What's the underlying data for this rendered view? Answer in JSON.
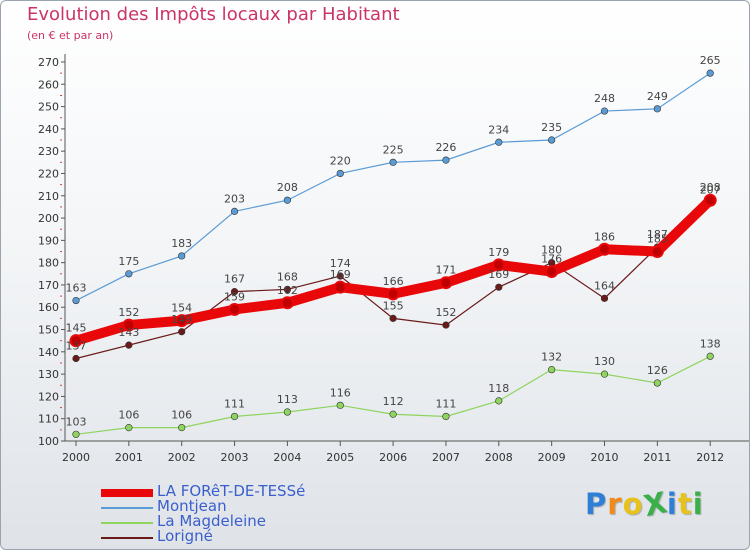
{
  "title": "Evolution des Impôts locaux par Habitant",
  "subtitle": "(en € et par an)",
  "logo": {
    "text": "ProXiti",
    "colors": [
      "#2f7fd6",
      "#f08a1a",
      "#e8c21c",
      "#3bb04a",
      "#2f7fd6",
      "#e8c21c",
      "#3bb04a"
    ]
  },
  "chart_data": {
    "type": "line",
    "title": "Evolution des Impôts locaux par Habitant",
    "subtitle": "(en € et par an)",
    "categories": [
      "2000",
      "2001",
      "2002",
      "2003",
      "2004",
      "2005",
      "2006",
      "2007",
      "2008",
      "2009",
      "2010",
      "2011",
      "2012"
    ],
    "yticks": [
      100,
      110,
      120,
      130,
      140,
      150,
      160,
      170,
      180,
      190,
      200,
      210,
      220,
      230,
      240,
      250,
      260,
      270
    ],
    "ylim": [
      100,
      270
    ],
    "grid": false,
    "legend_position": "bottom-left",
    "series": [
      {
        "name": "LA FORêT-DE-TESSé",
        "color": "#e8080a",
        "values": [
          145,
          152,
          154,
          159,
          162,
          169,
          166,
          171,
          179,
          176,
          186,
          185,
          208
        ]
      },
      {
        "name": "Montjean",
        "color": "#5b9bd5",
        "values": [
          163,
          175,
          183,
          203,
          208,
          220,
          225,
          226,
          234,
          235,
          248,
          249,
          265
        ]
      },
      {
        "name": "La Magdeleine",
        "color": "#8ed45e",
        "values": [
          103,
          106,
          106,
          111,
          113,
          116,
          112,
          111,
          118,
          132,
          130,
          126,
          138
        ]
      },
      {
        "name": "Lorigné",
        "color": "#6b1a1a",
        "values": [
          137,
          143,
          149,
          167,
          168,
          174,
          155,
          152,
          169,
          180,
          164,
          187,
          207
        ]
      }
    ]
  }
}
